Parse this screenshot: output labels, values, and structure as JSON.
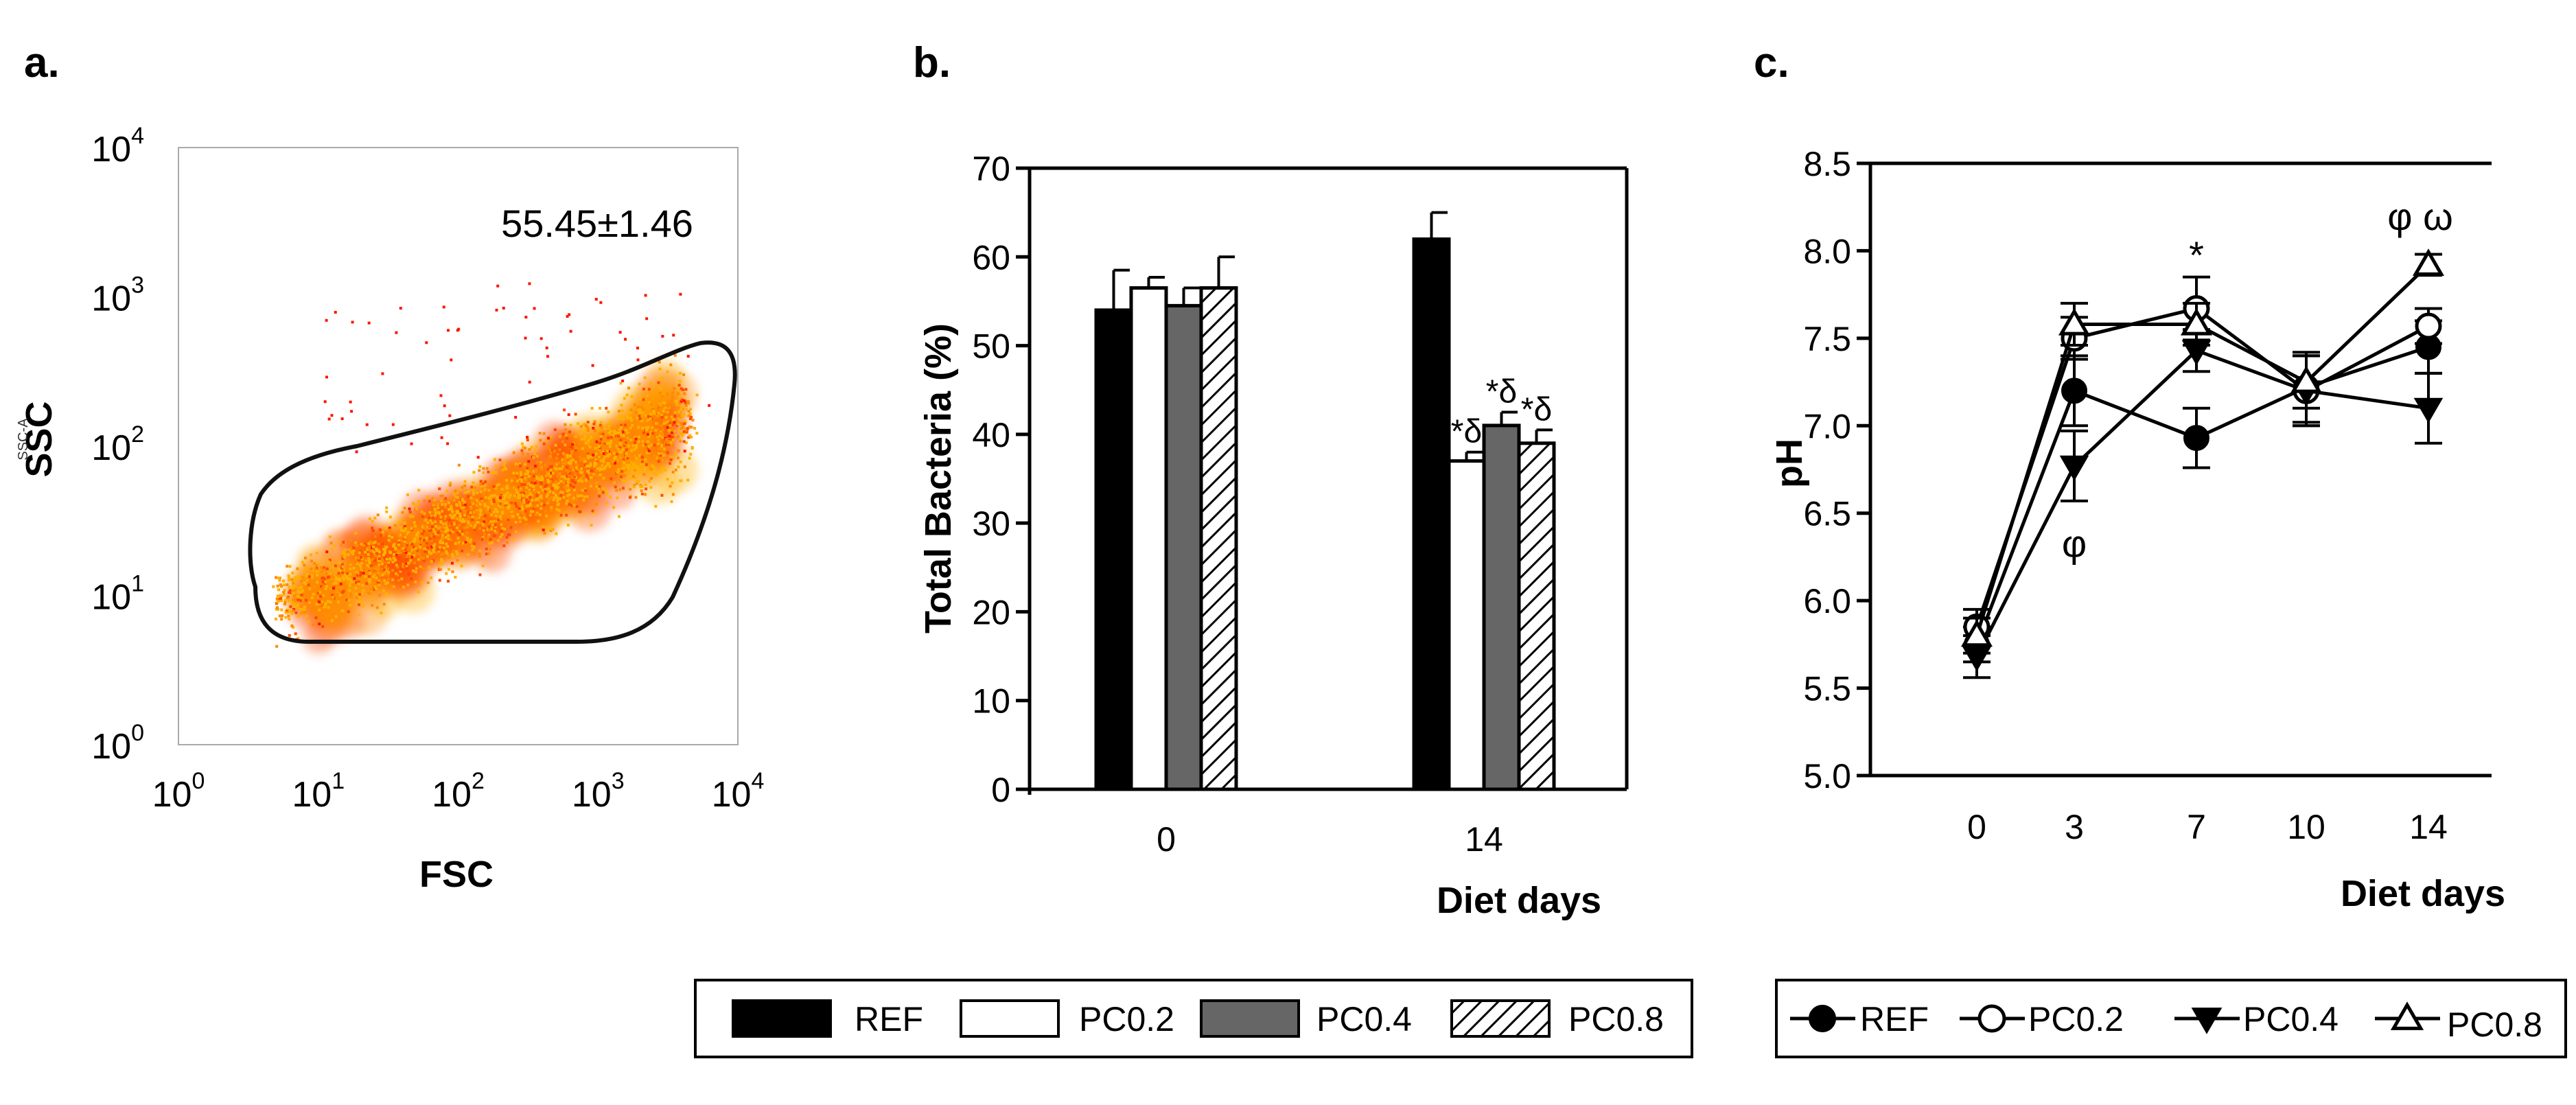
{
  "panels": {
    "a": {
      "label": "a.",
      "xlabel": "FSC",
      "ylabel": "SSC",
      "ylabel_small": "SSC-A",
      "gate_value": "55.45±1.46",
      "tick_base": "10",
      "x_ticks": [
        {
          "exp": "0"
        },
        {
          "exp": "1"
        },
        {
          "exp": "2"
        },
        {
          "exp": "3"
        },
        {
          "exp": "4"
        }
      ],
      "y_ticks": [
        {
          "exp": "0"
        },
        {
          "exp": "1"
        },
        {
          "exp": "2"
        },
        {
          "exp": "3"
        },
        {
          "exp": "4"
        }
      ],
      "density_colors": [
        "#ff1500",
        "#ff4a00",
        "#ff8a00",
        "#ffb000",
        "#f0c040"
      ]
    },
    "b": {
      "label": "b.",
      "annotations": [
        "*δ",
        "*δ",
        "*δ"
      ]
    },
    "c": {
      "label": "c.",
      "annotations": {
        "day3": "φ",
        "day7": "*",
        "day14": "φ ω"
      }
    }
  },
  "chart_data": [
    {
      "type": "scatter",
      "panel": "a",
      "title": "",
      "xlabel": "FSC",
      "ylabel": "SSC",
      "xscale": "log",
      "yscale": "log",
      "xlim": [
        1,
        10000
      ],
      "ylim": [
        1,
        10000
      ],
      "gated_percent_mean": 55.45,
      "gated_percent_sd": 1.46
    },
    {
      "type": "bar",
      "panel": "b",
      "xlabel": "Diet days",
      "ylabel": "Total Bacteria (%)",
      "ylim": [
        0,
        70
      ],
      "yticks": [
        0,
        10,
        20,
        30,
        40,
        50,
        60,
        70
      ],
      "categories": [
        "0",
        "14"
      ],
      "series": [
        {
          "name": "REF",
          "fill": "#000000",
          "values": [
            54,
            62
          ],
          "errors": [
            4.5,
            3
          ]
        },
        {
          "name": "PC0.2",
          "fill": "#ffffff",
          "values": [
            56.5,
            37
          ],
          "errors": [
            1.2,
            1
          ]
        },
        {
          "name": "PC0.4",
          "fill": "#666666",
          "values": [
            54.5,
            41
          ],
          "errors": [
            2,
            1.5
          ]
        },
        {
          "name": "PC0.8",
          "fill": "hatch",
          "values": [
            56.5,
            39
          ],
          "errors": [
            3.5,
            1.5
          ]
        }
      ],
      "legend": [
        "REF",
        "PC0.2",
        "PC0.4",
        "PC0.8"
      ]
    },
    {
      "type": "line",
      "panel": "c",
      "xlabel": "Diet days",
      "ylabel": "pH",
      "x": [
        0,
        3,
        7,
        10,
        14
      ],
      "xticks": [
        "0",
        "3",
        "7",
        "10",
        "14"
      ],
      "ylim": [
        5.0,
        8.5
      ],
      "yticks": [
        "5.0",
        "5.5",
        "6.0",
        "6.5",
        "7.0",
        "7.5",
        "8.0",
        "8.5"
      ],
      "series": [
        {
          "name": "REF",
          "marker": "filled-circle",
          "values": [
            5.75,
            7.2,
            6.93,
            7.22,
            7.45
          ],
          "errors": [
            0.1,
            0.2,
            0.17,
            0.2,
            0.15
          ]
        },
        {
          "name": "PC0.2",
          "marker": "open-circle",
          "values": [
            5.85,
            7.5,
            7.67,
            7.2,
            7.57
          ],
          "errors": [
            0.1,
            0.12,
            0.18,
            0.2,
            0.1
          ]
        },
        {
          "name": "PC0.4",
          "marker": "filled-triangle-down",
          "values": [
            5.68,
            6.77,
            7.43,
            7.2,
            7.1
          ],
          "errors": [
            0.12,
            0.2,
            0.12,
            0.2,
            0.2
          ]
        },
        {
          "name": "PC0.8",
          "marker": "open-triangle-up",
          "values": [
            5.8,
            7.58,
            7.58,
            7.25,
            7.92
          ],
          "errors": [
            0.1,
            0.12,
            0.12,
            0.15,
            0.06
          ]
        }
      ],
      "legend": [
        "REF",
        "PC0.2",
        "PC0.4",
        "PC0.8"
      ]
    }
  ]
}
